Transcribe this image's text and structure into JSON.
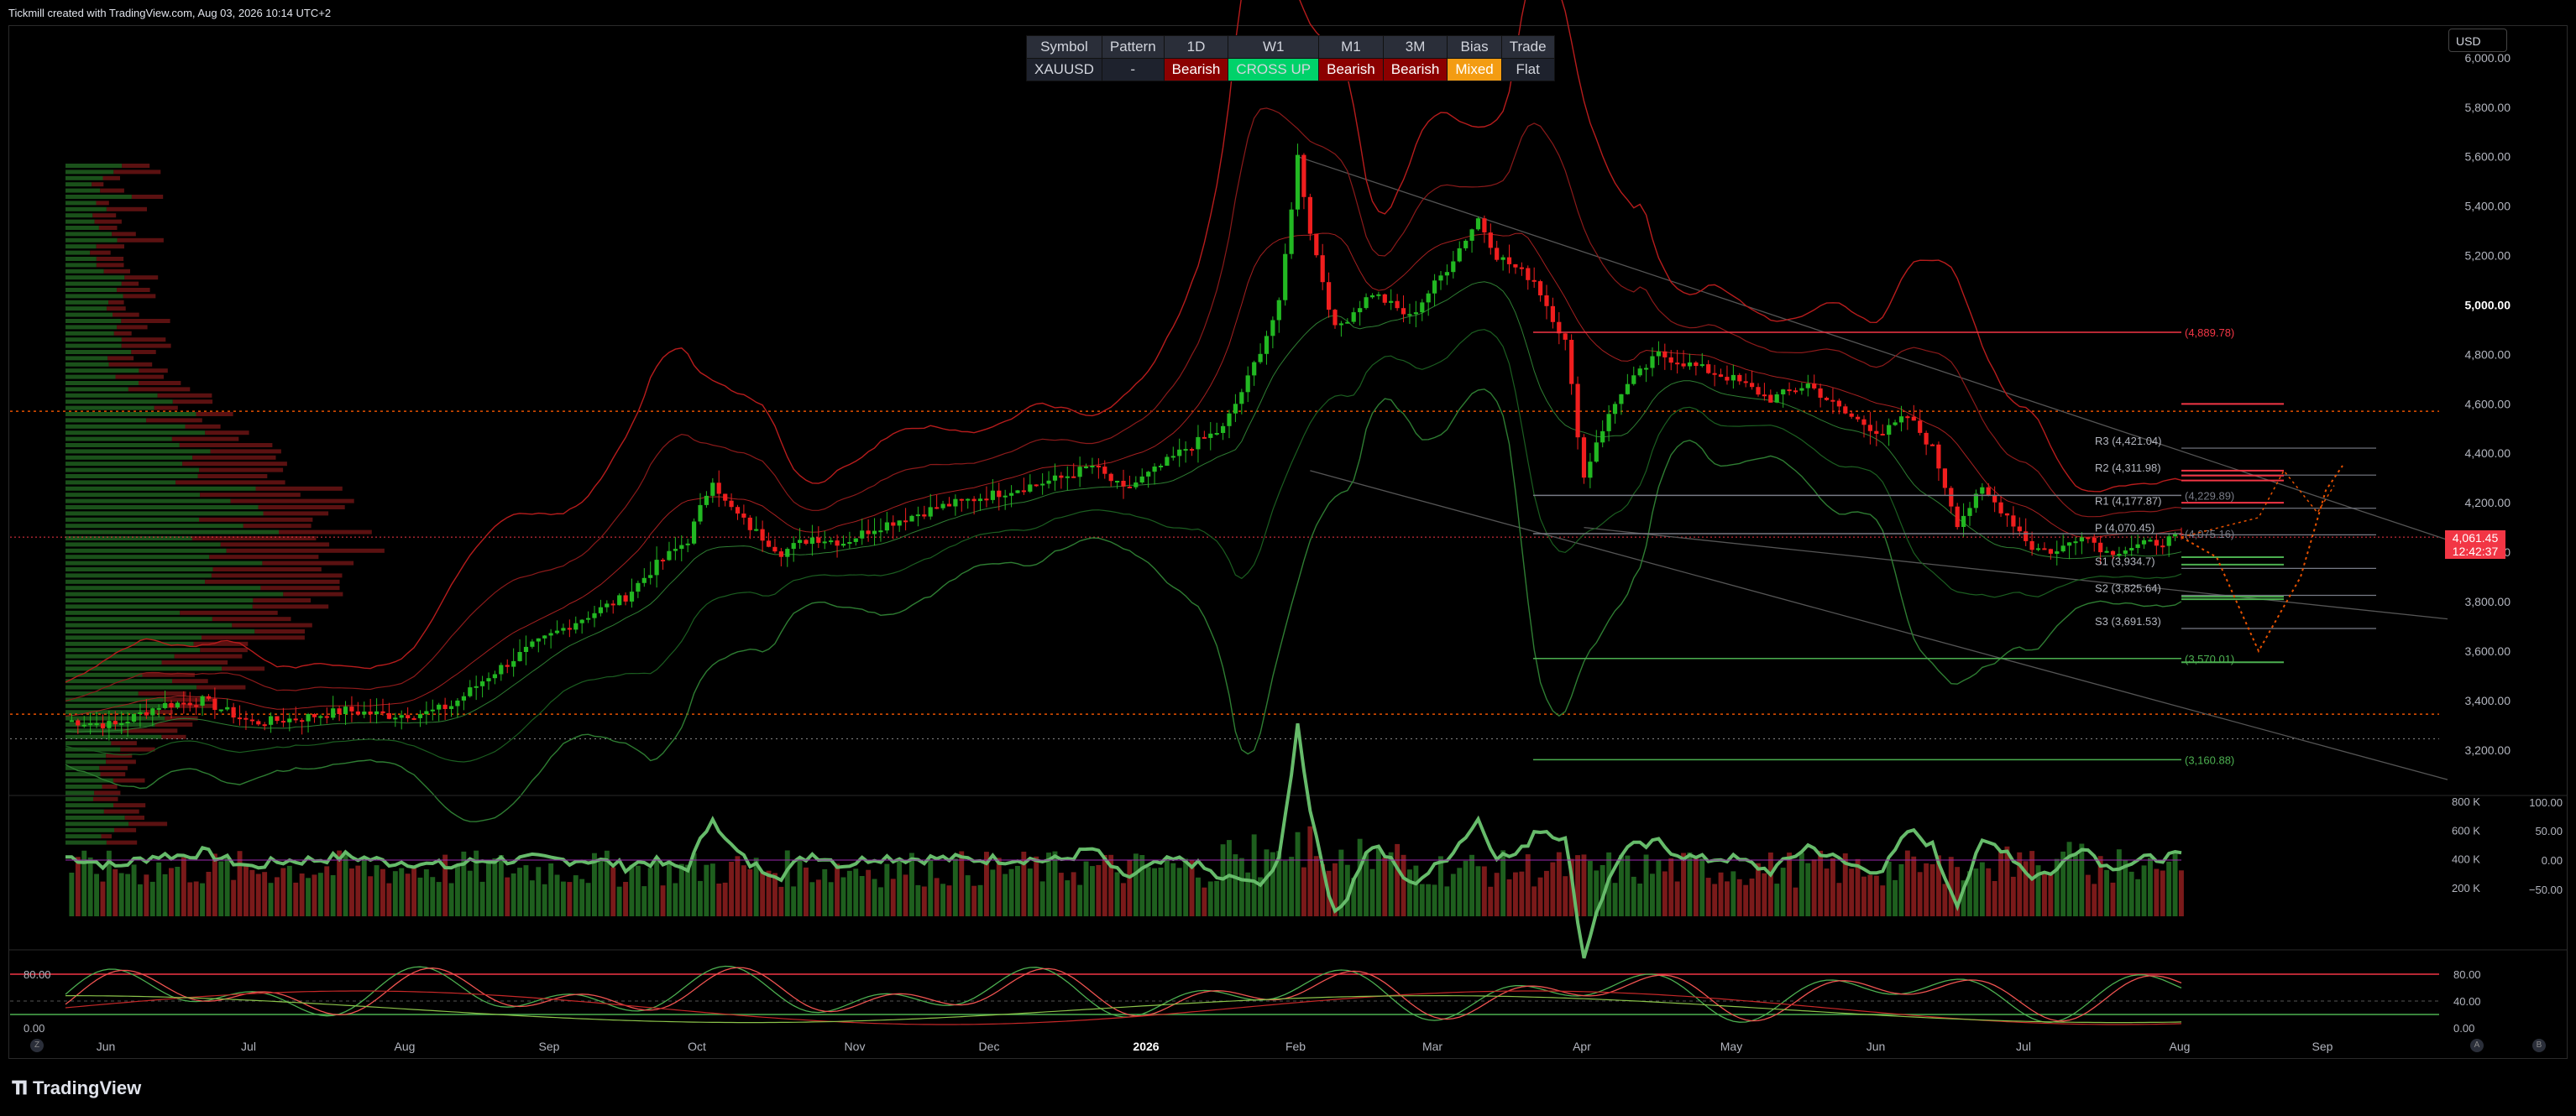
{
  "header": {
    "text": "Tickmill created with TradingView.com, Aug 03, 2026 10:14 UTC+2"
  },
  "currency_button": {
    "label": "USD"
  },
  "info_table": {
    "headers": [
      "Symbol",
      "Pattern",
      "1D",
      "W1",
      "M1",
      "3M",
      "Bias",
      "Trade"
    ],
    "values": [
      "XAUUSD",
      "-",
      "Bearish",
      "CROSS UP",
      "Bearish",
      "Bearish",
      "Mixed",
      "Flat"
    ]
  },
  "price_badge": {
    "price": "4,061.45",
    "countdown": "12:42:37"
  },
  "colors": {
    "bull": "#1a9a1a",
    "bear": "#e01e1e",
    "bg": "#000000",
    "badge": "#f23645"
  },
  "chart_data": {
    "type": "candlestick",
    "symbol": "XAUUSD",
    "price_axis": {
      "ticks": [
        "6,000.00",
        "5,800.00",
        "5,600.00",
        "5,400.00",
        "5,200.00",
        "5,000.00",
        "4,800.00",
        "4,600.00",
        "4,400.00",
        "4,200.00",
        "4,000.00",
        "3,800.00",
        "3,600.00",
        "3,400.00",
        "3,200.00"
      ],
      "values": [
        6000,
        5800,
        5600,
        5400,
        5200,
        5000,
        4800,
        4600,
        4400,
        4200,
        4000,
        3800,
        3600,
        3400,
        3200
      ],
      "ylim": [
        3050,
        6030
      ]
    },
    "time_axis": {
      "labels": [
        "Jun",
        "Jul",
        "Aug",
        "Sep",
        "Oct",
        "Nov",
        "Dec",
        "2026",
        "Feb",
        "Mar",
        "Apr",
        "May",
        "Jun",
        "Jul",
        "Aug",
        "Sep"
      ]
    },
    "price_path": [
      [
        0,
        3320
      ],
      [
        8,
        3300
      ],
      [
        15,
        3380
      ],
      [
        22,
        3400
      ],
      [
        30,
        3310
      ],
      [
        38,
        3330
      ],
      [
        45,
        3360
      ],
      [
        52,
        3340
      ],
      [
        58,
        3350
      ],
      [
        62,
        3380
      ],
      [
        68,
        3500
      ],
      [
        75,
        3620
      ],
      [
        82,
        3720
      ],
      [
        90,
        3820
      ],
      [
        95,
        3950
      ],
      [
        100,
        4050
      ],
      [
        104,
        4300
      ],
      [
        106,
        4200
      ],
      [
        110,
        4100
      ],
      [
        115,
        4000
      ],
      [
        120,
        4060
      ],
      [
        125,
        4040
      ],
      [
        130,
        4100
      ],
      [
        140,
        4180
      ],
      [
        150,
        4240
      ],
      [
        160,
        4300
      ],
      [
        165,
        4350
      ],
      [
        170,
        4250
      ],
      [
        175,
        4330
      ],
      [
        180,
        4420
      ],
      [
        186,
        4500
      ],
      [
        190,
        4700
      ],
      [
        195,
        5000
      ],
      [
        198,
        5600
      ],
      [
        200,
        5300
      ],
      [
        204,
        4900
      ],
      [
        210,
        5050
      ],
      [
        216,
        4950
      ],
      [
        222,
        5150
      ],
      [
        227,
        5350
      ],
      [
        230,
        5200
      ],
      [
        236,
        5100
      ],
      [
        241,
        4850
      ],
      [
        244,
        4300
      ],
      [
        246,
        4450
      ],
      [
        250,
        4650
      ],
      [
        256,
        4800
      ],
      [
        262,
        4750
      ],
      [
        268,
        4700
      ],
      [
        274,
        4620
      ],
      [
        280,
        4680
      ],
      [
        286,
        4560
      ],
      [
        292,
        4480
      ],
      [
        296,
        4550
      ],
      [
        300,
        4420
      ],
      [
        304,
        4120
      ],
      [
        308,
        4250
      ],
      [
        312,
        4150
      ],
      [
        316,
        4020
      ],
      [
        320,
        4000
      ],
      [
        324,
        4080
      ],
      [
        328,
        4000
      ],
      [
        332,
        4020
      ],
      [
        336,
        4040
      ],
      [
        340,
        4061
      ]
    ],
    "volume_axis": {
      "ticks": [
        "800 K",
        "600 K",
        "400 K",
        "200 K"
      ],
      "values": [
        800000,
        600000,
        400000,
        200000
      ],
      "ylim": [
        0,
        800000
      ]
    },
    "oscillator_axis": {
      "ticks": [
        "100.00",
        "50.00",
        "0.00",
        "−50.00"
      ],
      "values": [
        100,
        50,
        0,
        -50
      ]
    },
    "stoch_axis": {
      "right_ticks": [
        "80.00",
        "40.00",
        "0.00"
      ],
      "left_ticks": [
        "80.00",
        "0.00"
      ],
      "values": [
        80,
        40,
        0
      ]
    },
    "pivots": [
      {
        "label": "R3 (4,421.04)",
        "value": 4421.04
      },
      {
        "label": "R2 (4,311.98)",
        "value": 4311.98
      },
      {
        "label": "R1 (4,177.87)",
        "value": 4177.87
      },
      {
        "label": "P (4,070.45)",
        "value": 4070.45
      },
      {
        "label": "S1 (3,934.7)",
        "value": 3934.7
      },
      {
        "label": "S2 (3,825.64)",
        "value": 3825.64
      },
      {
        "label": "S3 (3,691.53)",
        "value": 3691.53
      }
    ],
    "fib_levels": [
      {
        "label": "(4,889.78)",
        "value": 4889.78,
        "color": "#f23645"
      },
      {
        "label": "(4,229.89)",
        "value": 4229.89,
        "color": "#787b86"
      },
      {
        "label": "(4,075.16)",
        "value": 4075.16,
        "color": "#787b86"
      },
      {
        "label": "(3,570.01)",
        "value": 3570.01,
        "color": "#4caf50"
      },
      {
        "label": "(3,160.88)",
        "value": 3160.88,
        "color": "#4caf50"
      }
    ]
  }
}
